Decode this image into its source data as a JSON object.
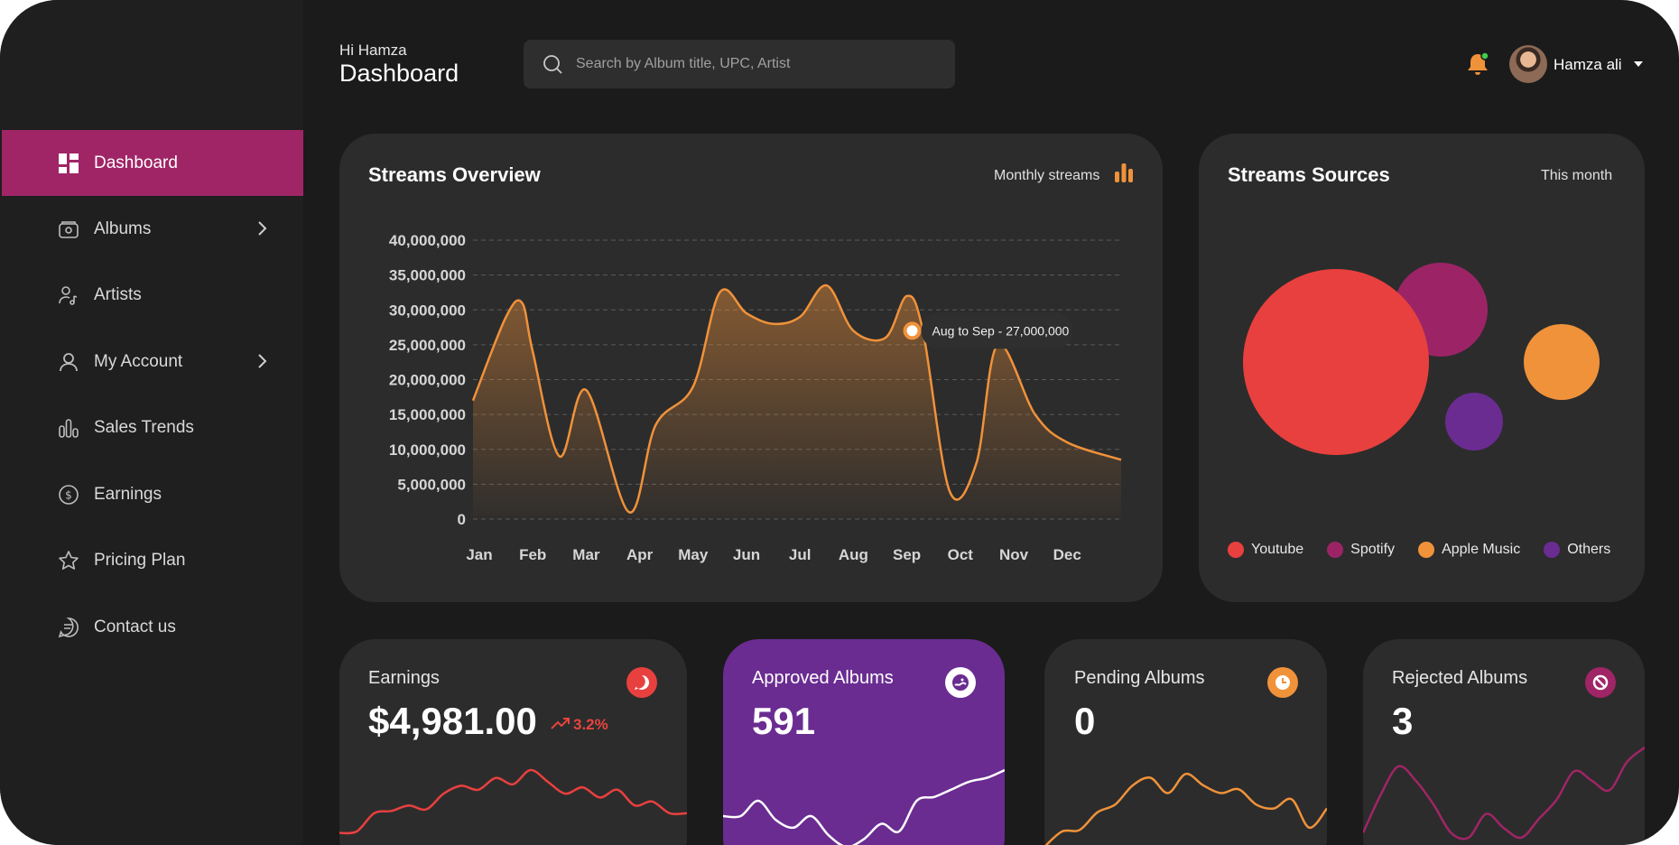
{
  "header": {
    "greeting": "Hi Hamza",
    "title": "Dashboard",
    "search_placeholder": "Search by Album title, UPC, Artist",
    "user_name": "Hamza ali"
  },
  "sidebar": {
    "items": [
      {
        "label": "Dashboard",
        "icon": "dashboard-icon",
        "active": true
      },
      {
        "label": "Albums",
        "icon": "album-icon",
        "has_submenu": true
      },
      {
        "label": "Artists",
        "icon": "artist-icon"
      },
      {
        "label": "My Account",
        "icon": "user-icon",
        "has_submenu": true
      },
      {
        "label": "Sales Trends",
        "icon": "bar-chart-icon"
      },
      {
        "label": "Earnings",
        "icon": "coin-icon"
      },
      {
        "label": "Pricing Plan",
        "icon": "star-icon"
      },
      {
        "label": "Contact us",
        "icon": "message-icon"
      }
    ]
  },
  "streams_overview": {
    "title": "Streams Overview",
    "period": "Monthly streams",
    "tooltip": "Aug to Sep - 27,000,000"
  },
  "streams_sources": {
    "title": "Streams Sources",
    "period": "This month",
    "legend": [
      {
        "name": "Youtube",
        "color": "#e8403e"
      },
      {
        "name": "Spotify",
        "color": "#9c2466"
      },
      {
        "name": "Apple Music",
        "color": "#f0923a"
      },
      {
        "name": "Others",
        "color": "#6a2c91"
      }
    ]
  },
  "stats": {
    "earnings": {
      "label": "Earnings",
      "value": "$4,981.00",
      "change": "3.2%",
      "icon": "chat-icon",
      "color": "#e8403e"
    },
    "approved": {
      "label": "Approved Albums",
      "value": "591",
      "icon": "approved-icon",
      "color": "#6a2c91"
    },
    "pending": {
      "label": "Pending Albums",
      "value": "0",
      "icon": "clock-icon",
      "color": "#f0923a"
    },
    "rejected": {
      "label": "Rejected Albums",
      "value": "3",
      "icon": "block-icon",
      "color": "#a02566"
    }
  },
  "chart_data": [
    {
      "type": "area",
      "title": "Streams Overview",
      "categories": [
        "Jan",
        "Feb",
        "Mar",
        "Apr",
        "May",
        "Jun",
        "Jul",
        "Aug",
        "Sep",
        "Oct",
        "Nov",
        "Dec"
      ],
      "yticks": [
        "40,000,000",
        "35,000,000",
        "30,000,000",
        "25,000,000",
        "20,000,000",
        "15,000,000",
        "10,000,000",
        "5,000,000",
        "0"
      ],
      "ylim": [
        0,
        40000000
      ],
      "x": [
        0,
        0.5,
        0.8,
        1.0,
        1.5,
        2.0,
        2.8,
        3.3,
        4.0,
        4.5,
        5.0,
        5.5,
        6.0,
        6.5,
        7.0,
        7.6,
        8.0,
        8.3,
        8.8,
        9.3,
        9.7,
        10.4,
        11.0,
        11.6
      ],
      "y": [
        17000000,
        29000000,
        31000000,
        24000000,
        9000000,
        18500000,
        1000000,
        13500000,
        19000000,
        32500000,
        29500000,
        28000000,
        29000000,
        33500000,
        27000000,
        26000000,
        32000000,
        27000000,
        4000000,
        8000000,
        25000000,
        15000000,
        11000000,
        8500000
      ],
      "color": "#f0923a",
      "grid": true
    },
    {
      "type": "scatter",
      "title": "Streams Sources",
      "series": [
        {
          "name": "Youtube",
          "values": [
            52
          ]
        },
        {
          "name": "Spotify",
          "values": [
            18
          ]
        },
        {
          "name": "Apple Music",
          "values": [
            10
          ]
        },
        {
          "name": "Others",
          "values": [
            6
          ]
        }
      ],
      "colors": [
        "#e8403e",
        "#9c2466",
        "#f0923a",
        "#6a2c91"
      ]
    }
  ],
  "sparklines": {
    "earnings": [
      0.8,
      0.78,
      0.55,
      0.52,
      0.45,
      0.5,
      0.3,
      0.2,
      0.25,
      0.1,
      0.18,
      0.0,
      0.15,
      0.3,
      0.22,
      0.35,
      0.25,
      0.45,
      0.4,
      0.55,
      0.55
    ],
    "approved": [
      0.6,
      0.6,
      0.4,
      0.65,
      0.75,
      0.6,
      0.85,
      1.0,
      0.9,
      0.7,
      0.8,
      0.4,
      0.35,
      0.25,
      0.15,
      0.1,
      0.0
    ],
    "pending": [
      1.0,
      0.8,
      0.78,
      0.55,
      0.45,
      0.2,
      0.1,
      0.3,
      0.05,
      0.2,
      0.3,
      0.25,
      0.45,
      0.5,
      0.38,
      0.75,
      0.5
    ],
    "rejected": [
      0.9,
      0.5,
      0.2,
      0.35,
      0.6,
      0.9,
      0.95,
      0.7,
      0.85,
      0.95,
      0.75,
      0.55,
      0.25,
      0.35,
      0.45,
      0.15,
      0.0
    ]
  }
}
